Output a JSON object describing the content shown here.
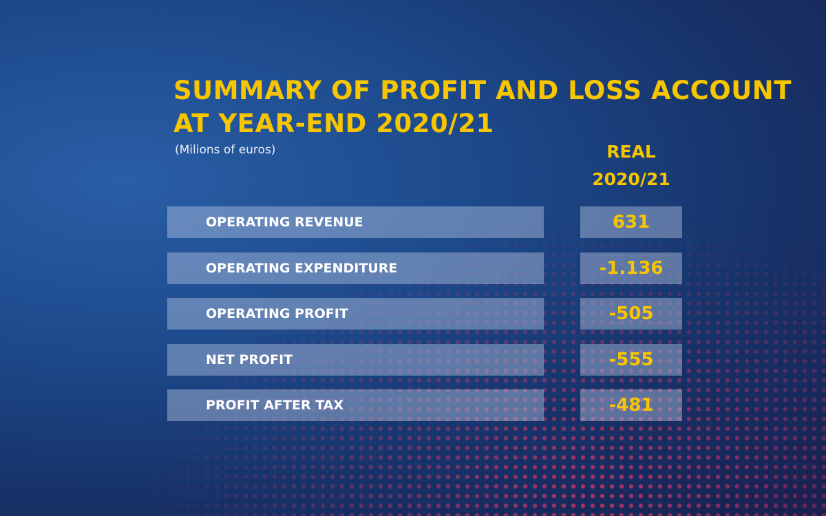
{
  "header": {
    "title_lines": [
      "SUMMARY OF PROFIT AND LOSS ACCOUNT",
      "AT YEAR-END 2020/21"
    ],
    "subtitle": "(Milions of euros)"
  },
  "table": {
    "column_header": [
      "REAL",
      "2020/21"
    ],
    "rows": [
      [
        "OPERATING REVENUE",
        "631"
      ],
      [
        "OPERATING EXPENDITURE",
        "-1.136"
      ],
      [
        "OPERATING PROFIT",
        "-505"
      ],
      [
        "NET PROFIT",
        "-555"
      ],
      [
        "PROFIT AFTER TAX",
        "-481"
      ]
    ]
  }
}
